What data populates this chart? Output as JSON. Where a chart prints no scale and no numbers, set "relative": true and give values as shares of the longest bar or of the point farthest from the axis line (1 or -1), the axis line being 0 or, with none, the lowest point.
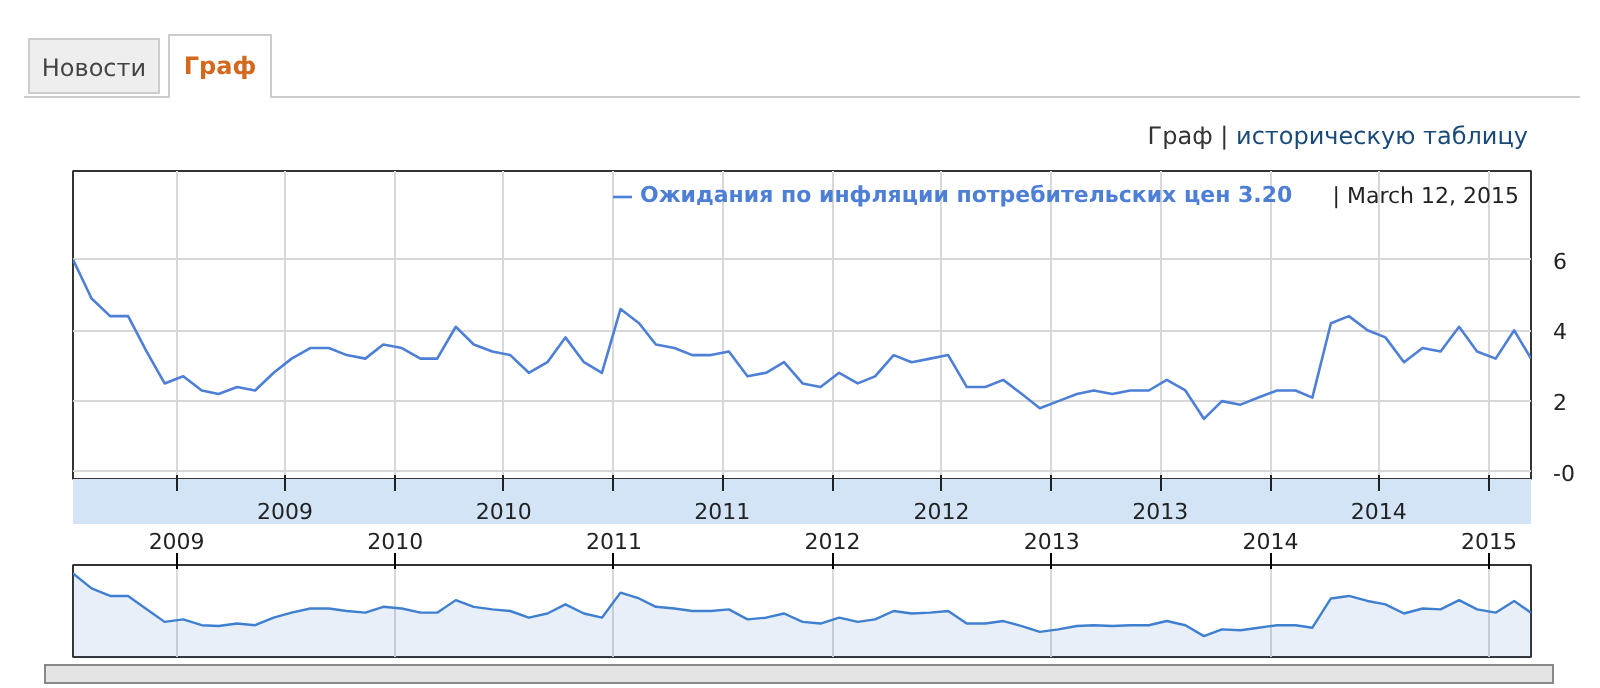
{
  "chart_data": [
    {
      "type": "line",
      "annotations": [
        "Новости",
        "Граф",
        "Граф |",
        "историческую таблицу",
        "| March 12, 2015"
      ],
      "x": [
        "2008-07-12",
        "2008-08-12",
        "2008-09-12",
        "2008-10-12",
        "2008-11-12",
        "2008-12-12",
        "2009-01-12",
        "2009-02-12",
        "2009-03-12",
        "2009-04-12",
        "2009-05-12",
        "2009-06-12",
        "2009-07-12",
        "2009-08-12",
        "2009-09-12",
        "2009-10-12",
        "2009-11-12",
        "2009-12-12",
        "2010-01-12",
        "2010-02-12",
        "2010-03-12",
        "2010-04-12",
        "2010-05-12",
        "2010-06-12",
        "2010-07-12",
        "2010-08-12",
        "2010-09-12",
        "2010-10-12",
        "2010-11-12",
        "2010-12-12",
        "2011-01-12",
        "2011-02-12",
        "2011-03-12",
        "2011-04-12",
        "2011-05-12",
        "2011-06-12",
        "2011-07-12",
        "2011-08-12",
        "2011-09-12",
        "2011-10-12",
        "2011-11-12",
        "2011-12-12",
        "2012-01-12",
        "2012-02-12",
        "2012-03-12",
        "2012-04-12",
        "2012-05-12",
        "2012-06-12",
        "2012-07-12",
        "2012-08-12",
        "2012-09-12",
        "2012-10-12",
        "2012-11-12",
        "2012-12-12",
        "2013-01-12",
        "2013-02-12",
        "2013-03-12",
        "2013-04-12",
        "2013-05-12",
        "2013-06-12",
        "2013-07-12",
        "2013-08-12",
        "2013-09-12",
        "2013-10-12",
        "2013-11-12",
        "2013-12-12",
        "2014-01-12",
        "2014-02-12",
        "2014-03-12",
        "2014-04-12",
        "2014-05-12",
        "2014-06-12",
        "2014-07-12",
        "2014-08-12",
        "2014-09-12",
        "2014-10-12",
        "2014-11-12",
        "2014-12-12",
        "2015-01-12",
        "2015-02-12",
        "2015-03-12"
      ],
      "series": [
        {
          "name": "Ожидания по инфляции потребительских цен 3.20",
          "color": "#4d7fd6",
          "values": [
            6.0,
            4.9,
            4.4,
            4.4,
            3.4,
            2.5,
            2.7,
            2.3,
            2.2,
            2.4,
            2.3,
            2.8,
            3.2,
            3.5,
            3.5,
            3.3,
            3.2,
            3.6,
            3.5,
            3.2,
            3.2,
            4.1,
            3.6,
            3.4,
            3.3,
            2.8,
            3.1,
            3.8,
            3.1,
            2.8,
            4.6,
            4.2,
            3.6,
            3.5,
            3.3,
            3.3,
            3.4,
            2.7,
            2.8,
            3.1,
            2.5,
            2.4,
            2.8,
            2.5,
            2.7,
            3.3,
            3.1,
            3.2,
            3.3,
            2.4,
            2.4,
            2.6,
            2.2,
            1.8,
            2.0,
            2.2,
            2.3,
            2.2,
            2.3,
            2.3,
            2.6,
            2.3,
            1.5,
            2.0,
            1.9,
            2.1,
            2.3,
            2.3,
            2.1,
            4.2,
            4.4,
            4.0,
            3.8,
            3.1,
            3.5,
            3.4,
            4.1,
            3.4,
            3.2,
            4.0,
            3.2
          ]
        }
      ],
      "xlim": [
        "2008-07-12",
        "2015-03-12"
      ],
      "xticks": [
        {
          "value": "2009-01-01",
          "label": null
        },
        {
          "value": "2009-07-01",
          "label": "2009"
        },
        {
          "value": "2010-01-01",
          "label": null
        },
        {
          "value": "2010-07-01",
          "label": "2010"
        },
        {
          "value": "2011-01-01",
          "label": null
        },
        {
          "value": "2011-07-01",
          "label": "2011"
        },
        {
          "value": "2012-01-01",
          "label": null
        },
        {
          "value": "2012-07-01",
          "label": "2012"
        },
        {
          "value": "2013-01-01",
          "label": null
        },
        {
          "value": "2013-07-01",
          "label": "2013"
        },
        {
          "value": "2014-01-01",
          "label": null
        },
        {
          "value": "2014-07-01",
          "label": "2014"
        },
        {
          "value": "2015-01-01",
          "label": null
        }
      ],
      "ylim": [
        -0.2,
        8.5
      ],
      "yticks": [
        {
          "value": 0,
          "label": "-0"
        },
        2,
        4,
        6
      ],
      "grid": true,
      "legend": "top right"
    },
    {
      "type": "area",
      "color": "#3f7fcf",
      "x": [
        "2008-07-12",
        "2008-08-12",
        "2008-09-12",
        "2008-10-12",
        "2008-11-12",
        "2008-12-12",
        "2009-01-12",
        "2009-02-12",
        "2009-03-12",
        "2009-04-12",
        "2009-05-12",
        "2009-06-12",
        "2009-07-12",
        "2009-08-12",
        "2009-09-12",
        "2009-10-12",
        "2009-11-12",
        "2009-12-12",
        "2010-01-12",
        "2010-02-12",
        "2010-03-12",
        "2010-04-12",
        "2010-05-12",
        "2010-06-12",
        "2010-07-12",
        "2010-08-12",
        "2010-09-12",
        "2010-10-12",
        "2010-11-12",
        "2010-12-12",
        "2011-01-12",
        "2011-02-12",
        "2011-03-12",
        "2011-04-12",
        "2011-05-12",
        "2011-06-12",
        "2011-07-12",
        "2011-08-12",
        "2011-09-12",
        "2011-10-12",
        "2011-11-12",
        "2011-12-12",
        "2012-01-12",
        "2012-02-12",
        "2012-03-12",
        "2012-04-12",
        "2012-05-12",
        "2012-06-12",
        "2012-07-12",
        "2012-08-12",
        "2012-09-12",
        "2012-10-12",
        "2012-11-12",
        "2012-12-12",
        "2013-01-12",
        "2013-02-12",
        "2013-03-12",
        "2013-04-12",
        "2013-05-12",
        "2013-06-12",
        "2013-07-12",
        "2013-08-12",
        "2013-09-12",
        "2013-10-12",
        "2013-11-12",
        "2013-12-12",
        "2014-01-12",
        "2014-02-12",
        "2014-03-12",
        "2014-04-12",
        "2014-05-12",
        "2014-06-12",
        "2014-07-12",
        "2014-08-12",
        "2014-09-12",
        "2014-10-12",
        "2014-11-12",
        "2014-12-12",
        "2015-01-12",
        "2015-02-12",
        "2015-03-12"
      ],
      "relative": true,
      "values": [
        1,
        0.82,
        0.73,
        0.73,
        0.57,
        0.42,
        0.45,
        0.38,
        0.37,
        0.4,
        0.38,
        0.47,
        0.53,
        0.58,
        0.58,
        0.55,
        0.53,
        0.6,
        0.58,
        0.53,
        0.53,
        0.68,
        0.6,
        0.57,
        0.55,
        0.47,
        0.52,
        0.63,
        0.52,
        0.47,
        0.77,
        0.7,
        0.6,
        0.58,
        0.55,
        0.55,
        0.57,
        0.45,
        0.47,
        0.52,
        0.42,
        0.4,
        0.47,
        0.42,
        0.45,
        0.55,
        0.52,
        0.53,
        0.55,
        0.4,
        0.4,
        0.43,
        0.37,
        0.3,
        0.33,
        0.37,
        0.38,
        0.37,
        0.38,
        0.38,
        0.43,
        0.38,
        0.25,
        0.33,
        0.32,
        0.35,
        0.38,
        0.38,
        0.35,
        0.7,
        0.73,
        0.67,
        0.63,
        0.52,
        0.58,
        0.57,
        0.68,
        0.57,
        0.53,
        0.67,
        0.53
      ],
      "xlim": [
        "2008-07-12",
        "2015-03-12"
      ],
      "xticks": [
        {
          "value": "2009-01-01",
          "label": "2009"
        },
        {
          "value": "2010-01-01",
          "label": "2010"
        },
        {
          "value": "2011-01-01",
          "label": "2011"
        },
        {
          "value": "2012-01-01",
          "label": "2012"
        },
        {
          "value": "2013-01-01",
          "label": "2013"
        },
        {
          "value": "2014-01-01",
          "label": "2014"
        },
        {
          "value": "2015-01-01",
          "label": "2015"
        }
      ],
      "tick_labels": "x",
      "grid": "x"
    }
  ]
}
